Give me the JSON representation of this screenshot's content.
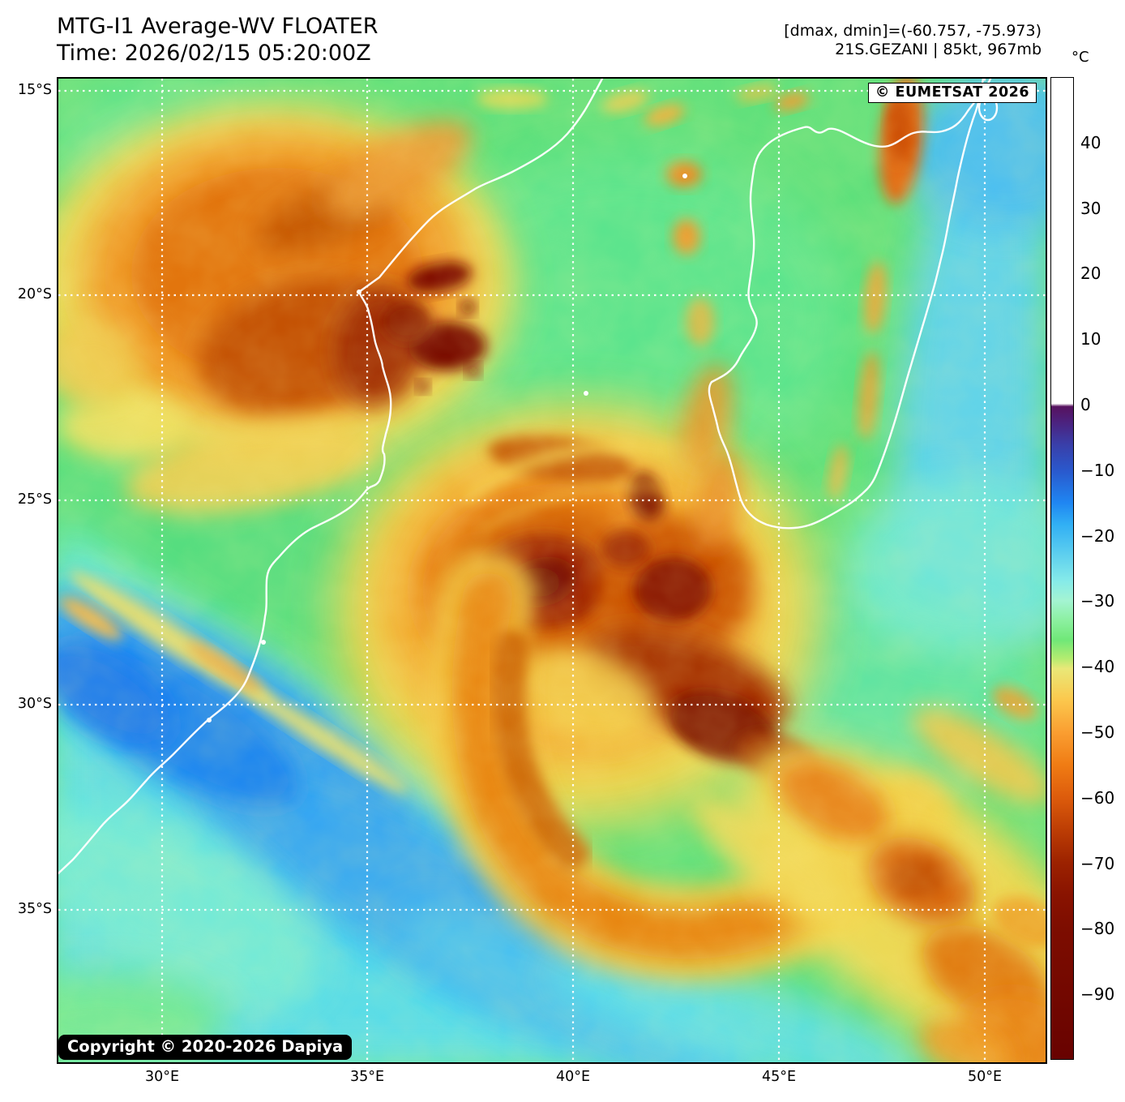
{
  "header": {
    "title_line1": "MTG-I1 Average-WV FLOATER",
    "title_line2": "Time: 2026/02/15 05:20:00Z",
    "info_line1": "[dmax, dmin]=(-60.757, -75.973)",
    "info_line2": "21S.GEZANI | 85kt, 967mb"
  },
  "map": {
    "overlay_credit": "© EUMETSAT 2026",
    "copyright": "Copyright © 2020-2026 Dapiya",
    "y_axis": {
      "labels": [
        "15°S",
        "20°S",
        "25°S",
        "30°S",
        "35°S"
      ]
    },
    "x_axis": {
      "labels": [
        "30°E",
        "35°E",
        "40°E",
        "45°E",
        "50°E"
      ]
    }
  },
  "colorbar": {
    "unit": "°C",
    "range": {
      "top_value": 50,
      "bottom_value": -100
    },
    "ticks": [
      {
        "label": "40",
        "value": 40
      },
      {
        "label": "30",
        "value": 30
      },
      {
        "label": "20",
        "value": 20
      },
      {
        "label": "10",
        "value": 10
      },
      {
        "label": "0",
        "value": 0
      },
      {
        "label": "−10",
        "value": -10
      },
      {
        "label": "−20",
        "value": -20
      },
      {
        "label": "−30",
        "value": -30
      },
      {
        "label": "−40",
        "value": -40
      },
      {
        "label": "−50",
        "value": -50
      },
      {
        "label": "−60",
        "value": -60
      },
      {
        "label": "−70",
        "value": -70
      },
      {
        "label": "−80",
        "value": -80
      },
      {
        "label": "−90",
        "value": -90
      }
    ],
    "gradient": [
      {
        "at": 0.0,
        "color": "#ffffff"
      },
      {
        "at": 0.332,
        "color": "#ffffff"
      },
      {
        "at": 0.335,
        "color": "#57125f"
      },
      {
        "at": 0.352,
        "color": "#4b2380"
      },
      {
        "at": 0.373,
        "color": "#3a3ea8"
      },
      {
        "at": 0.4,
        "color": "#2a58cc"
      },
      {
        "at": 0.433,
        "color": "#1f86f2"
      },
      {
        "at": 0.455,
        "color": "#31aff4"
      },
      {
        "at": 0.48,
        "color": "#55c9f0"
      },
      {
        "at": 0.513,
        "color": "#86ebe9"
      },
      {
        "at": 0.533,
        "color": "#a4f4d2"
      },
      {
        "at": 0.553,
        "color": "#8cf0a0"
      },
      {
        "at": 0.573,
        "color": "#70e878"
      },
      {
        "at": 0.592,
        "color": "#b4ec70"
      },
      {
        "at": 0.602,
        "color": "#e9e878"
      },
      {
        "at": 0.633,
        "color": "#fbc94e"
      },
      {
        "at": 0.667,
        "color": "#fa9e31"
      },
      {
        "at": 0.7,
        "color": "#f07c14"
      },
      {
        "at": 0.733,
        "color": "#dd5c0c"
      },
      {
        "at": 0.767,
        "color": "#bc3d04"
      },
      {
        "at": 0.8,
        "color": "#9c2200"
      },
      {
        "at": 0.833,
        "color": "#891300"
      },
      {
        "at": 0.867,
        "color": "#7d0d00"
      },
      {
        "at": 0.933,
        "color": "#730800"
      },
      {
        "at": 1.0,
        "color": "#680200"
      }
    ]
  }
}
